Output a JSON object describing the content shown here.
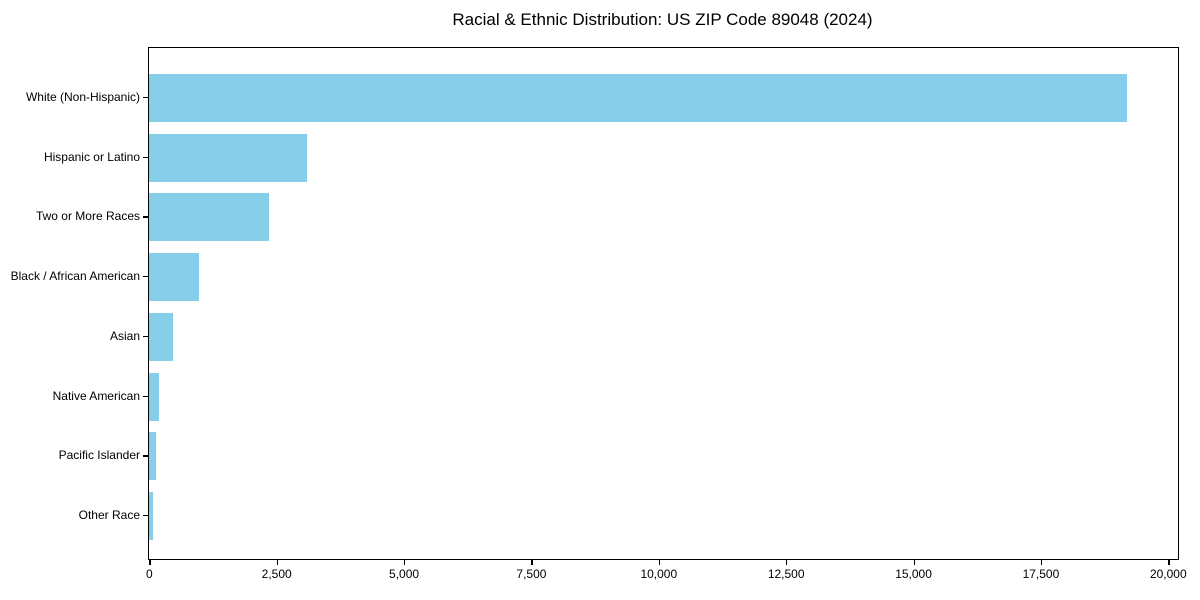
{
  "chart_data": {
    "type": "bar",
    "orientation": "horizontal",
    "title": "Racial & Ethnic Distribution: US ZIP Code 89048 (2024)",
    "categories": [
      "White (Non-Hispanic)",
      "Hispanic or Latino",
      "Two or More Races",
      "Black / African American",
      "Asian",
      "Native American",
      "Pacific Islander",
      "Other Race"
    ],
    "values": [
      19200,
      3100,
      2350,
      980,
      470,
      200,
      140,
      75
    ],
    "xlabel": "",
    "ylabel": "",
    "xlim": [
      0,
      20000
    ],
    "xticks": [
      0,
      2500,
      5000,
      7500,
      10000,
      12500,
      15000,
      17500,
      20000
    ],
    "xtick_labels": [
      "0",
      "2,500",
      "5,000",
      "7,500",
      "10,000",
      "12,500",
      "15,000",
      "17,500",
      "20,000"
    ],
    "grid": false,
    "legend": null,
    "bar_color": "#87CEEB",
    "text_color": "#000000",
    "background_color": "#ffffff"
  }
}
